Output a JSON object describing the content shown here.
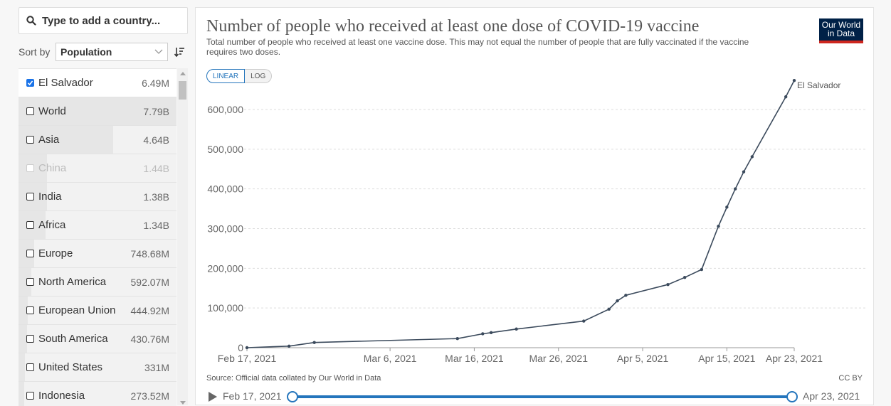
{
  "search": {
    "placeholder": "Type to add a country..."
  },
  "sort": {
    "label": "Sort by",
    "value": "Population"
  },
  "countries": [
    {
      "name": "El Salvador",
      "value": "6.49M",
      "checked": true,
      "dimmed": false,
      "bar": 0
    },
    {
      "name": "World",
      "value": "7.79B",
      "checked": false,
      "dimmed": false,
      "bar": 1.0
    },
    {
      "name": "Asia",
      "value": "4.64B",
      "checked": false,
      "dimmed": false,
      "bar": 0.6
    },
    {
      "name": "China",
      "value": "1.44B",
      "checked": false,
      "dimmed": true,
      "bar": 0.18
    },
    {
      "name": "India",
      "value": "1.38B",
      "checked": false,
      "dimmed": false,
      "bar": 0.18
    },
    {
      "name": "Africa",
      "value": "1.34B",
      "checked": false,
      "dimmed": false,
      "bar": 0.17
    },
    {
      "name": "Europe",
      "value": "748.68M",
      "checked": false,
      "dimmed": false,
      "bar": 0.1
    },
    {
      "name": "North America",
      "value": "592.07M",
      "checked": false,
      "dimmed": false,
      "bar": 0.08
    },
    {
      "name": "European Union",
      "value": "444.92M",
      "checked": false,
      "dimmed": false,
      "bar": 0.06
    },
    {
      "name": "South America",
      "value": "430.76M",
      "checked": false,
      "dimmed": false,
      "bar": 0.055
    },
    {
      "name": "United States",
      "value": "331M",
      "checked": false,
      "dimmed": false,
      "bar": 0.04
    },
    {
      "name": "Indonesia",
      "value": "273.52M",
      "checked": false,
      "dimmed": false,
      "bar": 0.035
    }
  ],
  "scale": {
    "linear_label": "LINEAR",
    "log_label": "LOG",
    "active": "LINEAR"
  },
  "logo": {
    "line1": "Our World",
    "line2": "in Data"
  },
  "source": "Source: Official data collated by Our World in Data",
  "license": "CC BY",
  "timeline": {
    "start": "Feb 17, 2021",
    "end": "Apr 23, 2021"
  },
  "colors": {
    "line": "#3b4a5c",
    "accent": "#2475bc",
    "logo_bg": "#002147",
    "logo_stripe": "#ce261e"
  },
  "chart_data": {
    "type": "line",
    "title": "Number of people who received at least one dose of COVID-19 vaccine",
    "subtitle": "Total number of people who received at least one vaccine dose. This may not equal the number of people that are fully vaccinated if the vaccine requires two doses.",
    "xlabel": "",
    "ylabel": "",
    "ylim": [
      0,
      650000
    ],
    "xlim": [
      "2021-02-17",
      "2021-04-23"
    ],
    "y_ticks": [
      0,
      100000,
      200000,
      300000,
      400000,
      500000,
      600000
    ],
    "y_tick_labels": [
      "0",
      "100,000",
      "200,000",
      "300,000",
      "400,000",
      "500,000",
      "600,000"
    ],
    "x_ticks": [
      "2021-02-17",
      "2021-03-06",
      "2021-03-16",
      "2021-03-26",
      "2021-04-05",
      "2021-04-15",
      "2021-04-23"
    ],
    "x_tick_labels": [
      "Feb 17, 2021",
      "Mar 6, 2021",
      "Mar 16, 2021",
      "Mar 26, 2021",
      "Apr 5, 2021",
      "Apr 15, 2021",
      "Apr 23, 2021"
    ],
    "grid": true,
    "series": [
      {
        "name": "El Salvador",
        "points": [
          [
            "2021-02-17",
            0
          ],
          [
            "2021-02-22",
            4000
          ],
          [
            "2021-02-25",
            13000
          ],
          [
            "2021-03-14",
            23000
          ],
          [
            "2021-03-17",
            35000
          ],
          [
            "2021-03-18",
            38000
          ],
          [
            "2021-03-21",
            47000
          ],
          [
            "2021-03-29",
            67000
          ],
          [
            "2021-04-01",
            97000
          ],
          [
            "2021-04-02",
            118000
          ],
          [
            "2021-04-03",
            132000
          ],
          [
            "2021-04-08",
            159000
          ],
          [
            "2021-04-10",
            177000
          ],
          [
            "2021-04-12",
            197000
          ],
          [
            "2021-04-14",
            306000
          ],
          [
            "2021-04-15",
            354000
          ],
          [
            "2021-04-16",
            400000
          ],
          [
            "2021-04-17",
            443000
          ],
          [
            "2021-04-18",
            481000
          ],
          [
            "2021-04-22",
            632000
          ],
          [
            "2021-04-23",
            673000
          ]
        ]
      }
    ]
  }
}
